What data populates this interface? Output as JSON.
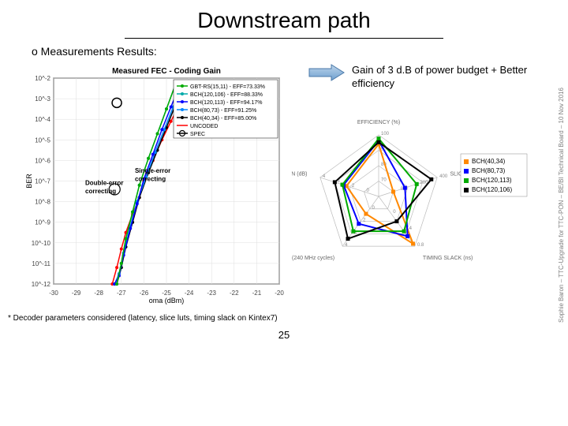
{
  "title": "Downstream path",
  "bullet": "o Measurements Results:",
  "note": "Gain of 3 d.B of power budget + Better efficiency",
  "vertical_credit": "Sophie Baron – TTC-Upgrade for TTC-PON – BE/BI Technical Board – 10 Nov 2016",
  "footnote": "* Decoder parameters considered (latency, slice luts, timing slack on Kintex7)",
  "page_num": "25",
  "ber_chart": {
    "title": "Measured FEC - Coding Gain",
    "xlabel": "oma (dBm)",
    "ylabel": "BER",
    "xlim": [
      -30,
      -20
    ],
    "xticks": [
      -30,
      -29,
      -28,
      -27,
      -26,
      -25,
      -24,
      -23,
      -22,
      -21,
      -20
    ],
    "yexp": [
      -2,
      -12
    ],
    "legend": [
      {
        "label": "GBT-RS(15,11) - EFF=73.33%",
        "color": "#00aa00",
        "marker": "circle"
      },
      {
        "label": "BCH(120,106) - EFF=88.33%",
        "color": "#00aaaa",
        "marker": "square"
      },
      {
        "label": "BCH(120,113) - EFF=94.17%",
        "color": "#0000ff",
        "marker": "diamond"
      },
      {
        "label": "BCH(80,73) - EFF=91.25%",
        "color": "#0088ff",
        "marker": "triangle"
      },
      {
        "label": "BCH(40,34) - EFF=85.00%",
        "color": "#000000",
        "marker": "circle"
      },
      {
        "label": "UNCODED",
        "color": "#ff0000",
        "marker": ""
      },
      {
        "label": "SPEC",
        "color": "#000000",
        "marker": "bigcircle"
      }
    ],
    "series": {
      "uncoded": {
        "color": "#ff0000",
        "pts": [
          [
            -24.0,
            -2.3
          ],
          [
            -24.4,
            -3.2
          ],
          [
            -24.8,
            -4.1
          ],
          [
            -25.2,
            -5.0
          ],
          [
            -25.6,
            -6.0
          ],
          [
            -26.0,
            -7.0
          ],
          [
            -26.2,
            -7.8
          ],
          [
            -26.5,
            -8.6
          ],
          [
            -26.8,
            -9.5
          ],
          [
            -27.0,
            -10.3
          ],
          [
            -27.2,
            -11.2
          ],
          [
            -27.4,
            -12.0
          ]
        ]
      },
      "bch40": {
        "color": "#000000",
        "pts": [
          [
            -24.2,
            -2.3
          ],
          [
            -24.6,
            -3.3
          ],
          [
            -25.0,
            -4.4
          ],
          [
            -25.4,
            -5.5
          ],
          [
            -25.8,
            -6.6
          ],
          [
            -26.2,
            -7.8
          ],
          [
            -26.5,
            -9.0
          ],
          [
            -26.8,
            -10.2
          ],
          [
            -27.0,
            -11.2
          ],
          [
            -27.2,
            -12.0
          ]
        ]
      },
      "bch80": {
        "color": "#0088ff",
        "pts": [
          [
            -24.3,
            -2.3
          ],
          [
            -24.7,
            -3.4
          ],
          [
            -25.1,
            -4.5
          ],
          [
            -25.5,
            -5.6
          ],
          [
            -25.9,
            -6.8
          ],
          [
            -26.3,
            -8.0
          ],
          [
            -26.6,
            -9.2
          ],
          [
            -26.9,
            -10.5
          ],
          [
            -27.1,
            -11.5
          ],
          [
            -27.3,
            -12.0
          ]
        ]
      },
      "bch120_113": {
        "color": "#0000ff",
        "pts": [
          [
            -24.4,
            -2.3
          ],
          [
            -24.8,
            -3.4
          ],
          [
            -25.2,
            -4.5
          ],
          [
            -25.6,
            -5.7
          ],
          [
            -26.0,
            -6.9
          ],
          [
            -26.3,
            -8.1
          ],
          [
            -26.6,
            -9.3
          ],
          [
            -26.9,
            -10.6
          ],
          [
            -27.1,
            -11.6
          ],
          [
            -27.3,
            -12.0
          ]
        ]
      },
      "bch120_106": {
        "color": "#00aaaa",
        "pts": [
          [
            -24.6,
            -2.3
          ],
          [
            -25.0,
            -3.5
          ],
          [
            -25.4,
            -4.7
          ],
          [
            -25.8,
            -5.9
          ],
          [
            -26.2,
            -7.2
          ],
          [
            -26.5,
            -8.5
          ],
          [
            -26.8,
            -9.8
          ],
          [
            -27.0,
            -11.0
          ],
          [
            -27.2,
            -12.0
          ]
        ]
      },
      "gbt": {
        "color": "#00aa00",
        "pts": [
          [
            -24.6,
            -2.3
          ],
          [
            -25.0,
            -3.5
          ],
          [
            -25.4,
            -4.7
          ],
          [
            -25.8,
            -5.9
          ],
          [
            -26.2,
            -7.2
          ],
          [
            -26.5,
            -8.5
          ],
          [
            -26.8,
            -9.8
          ],
          [
            -27.0,
            -11.0
          ],
          [
            -27.2,
            -12.0
          ]
        ]
      }
    },
    "spec_point": [
      -27.2,
      -3.2
    ],
    "annotations": {
      "double": "Double-error correcting",
      "single": "Single-error correcting"
    }
  },
  "radar": {
    "axes": [
      "EFFICIENCY (%)",
      "SLICE LUTS",
      "TIMING SLACK (ns)",
      "FRAME LATENCY OVERHEAD (240 MHz cycles)",
      "CODING GAIN (dB)"
    ],
    "axis_max_labels": [
      [
        "70",
        "80",
        "90",
        "100"
      ],
      [
        "0",
        "200",
        "400"
      ],
      [
        "0",
        "0.4",
        "0.8"
      ],
      [
        "0",
        "2",
        "3",
        "4"
      ],
      [
        "0",
        "2",
        "3",
        "4"
      ]
    ],
    "series": [
      {
        "name": "BCH(40,34)",
        "color": "#ff8800",
        "vals": [
          0.85,
          0.25,
          0.95,
          0.35,
          0.55
        ]
      },
      {
        "name": "BCH(80,73)",
        "color": "#0000ff",
        "vals": [
          0.91,
          0.45,
          0.8,
          0.55,
          0.6
        ]
      },
      {
        "name": "BCH(120,113)",
        "color": "#00aa00",
        "vals": [
          0.94,
          0.65,
          0.7,
          0.7,
          0.62
        ]
      },
      {
        "name": "BCH(120,106)",
        "color": "#000000",
        "vals": [
          0.88,
          0.9,
          0.5,
          0.85,
          0.75
        ]
      }
    ]
  }
}
